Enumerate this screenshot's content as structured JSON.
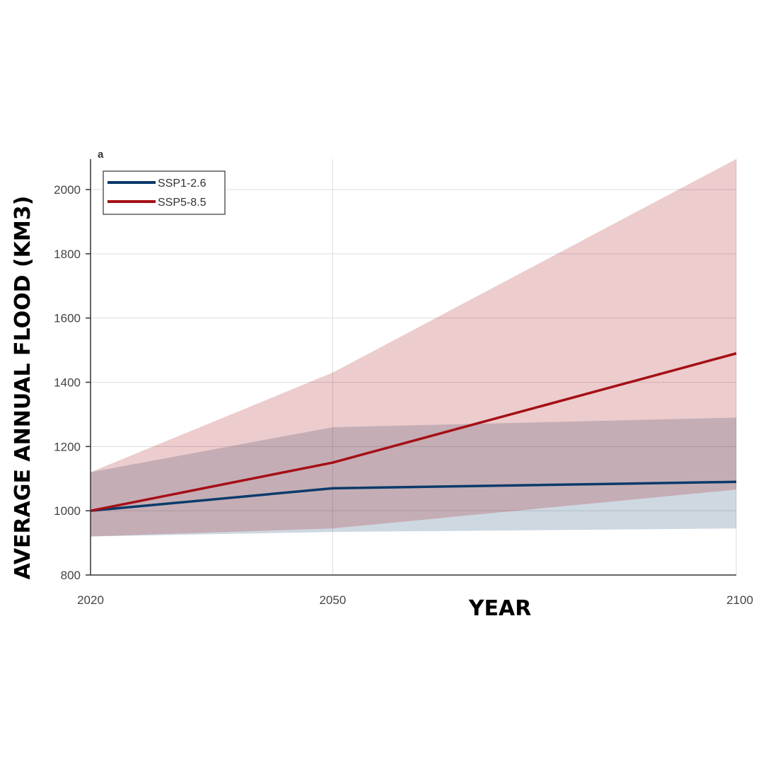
{
  "chart_data": {
    "type": "line",
    "panel_label": "a",
    "xlabel": "YEAR",
    "ylabel": "AVERAGE ANNUAL FLOOD (KM3)",
    "xlim": [
      2020,
      2100
    ],
    "ylim": [
      800,
      2100
    ],
    "xticks": [
      2020,
      2050,
      2100
    ],
    "yticks": [
      800,
      1000,
      1200,
      1400,
      1600,
      1800,
      2000
    ],
    "grid": true,
    "legend_position": "top-left",
    "x": [
      2020,
      2050,
      2100
    ],
    "series": [
      {
        "name": "SSP1-2.6",
        "color": "#0b3a6b",
        "values": [
          1000,
          1070,
          1090
        ],
        "lower": [
          920,
          934,
          945
        ],
        "upper": [
          1120,
          1260,
          1290
        ]
      },
      {
        "name": "SSP5-8.5",
        "color": "#a50f15",
        "values": [
          1000,
          1150,
          1490
        ],
        "lower": [
          920,
          945,
          1066
        ],
        "upper": [
          1120,
          1430,
          2095
        ]
      }
    ]
  }
}
